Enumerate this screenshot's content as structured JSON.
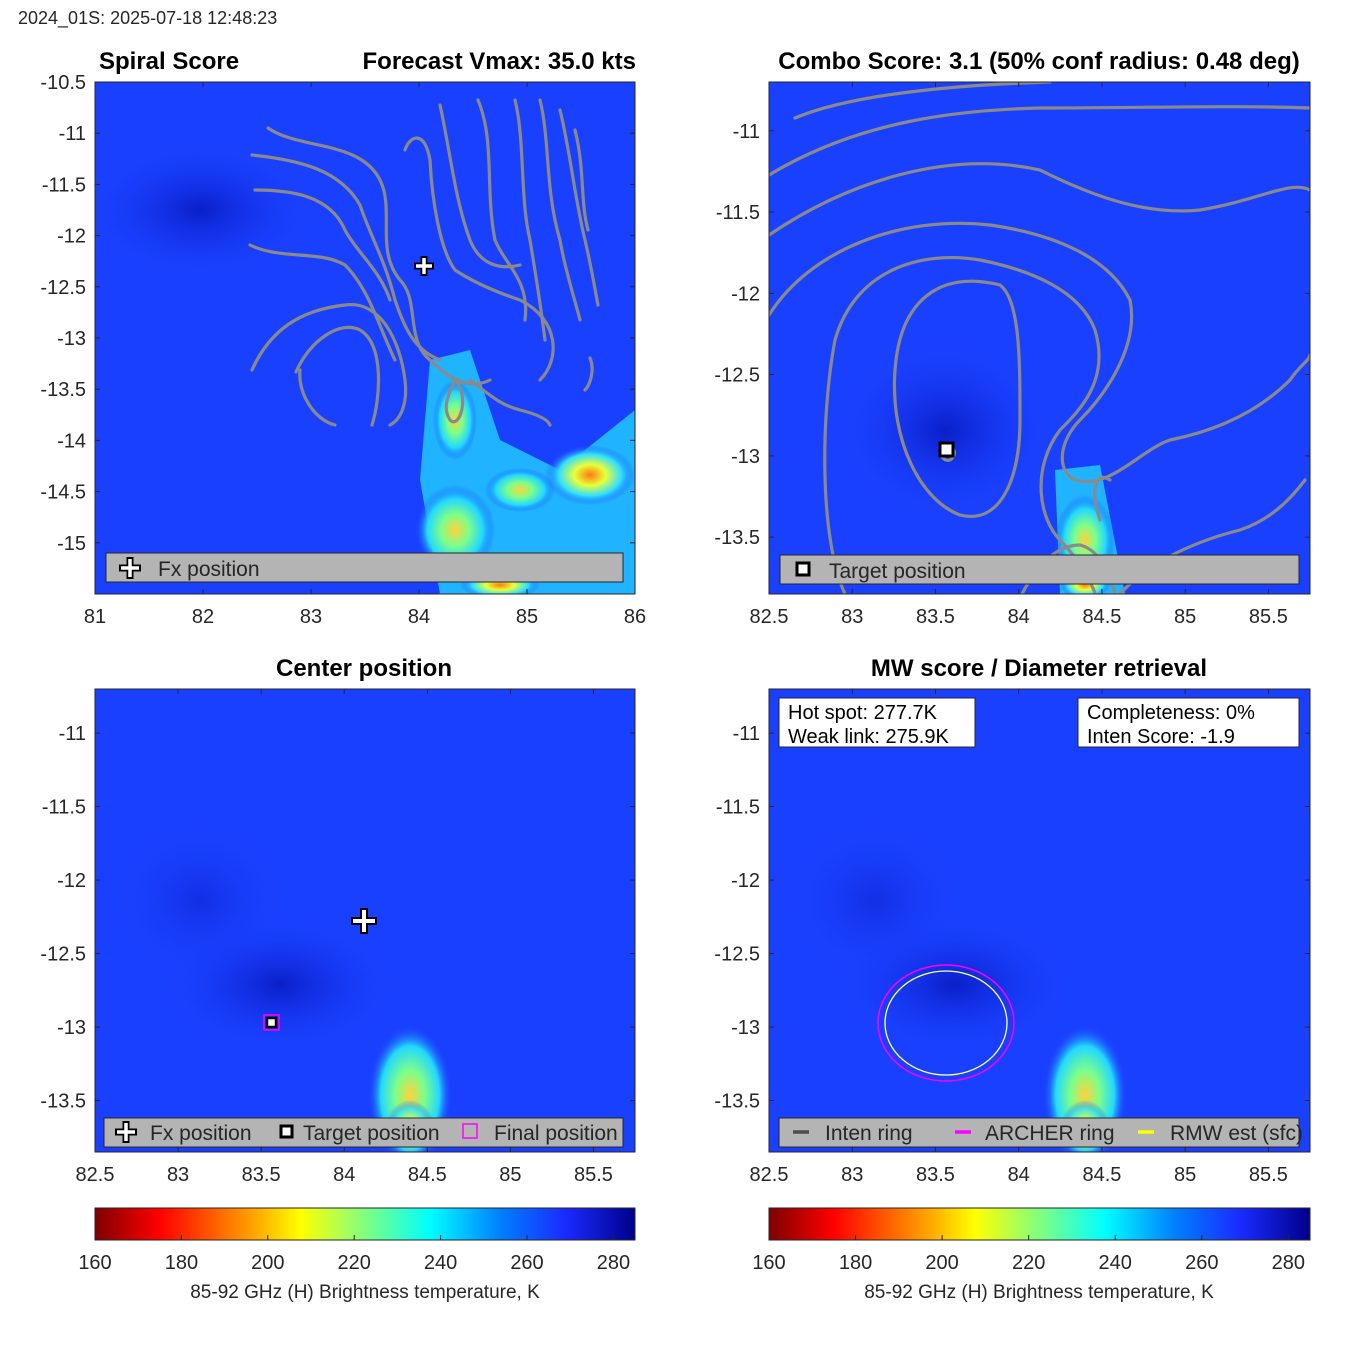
{
  "header": {
    "stamp": "2024_01S: 2025-07-18 12:48:23"
  },
  "colors": {
    "background_field": "#1a40ff",
    "contour": "#8a8a8a",
    "legend_box": "#b4b4b4",
    "archer_ring": "#ff00ff",
    "rmw_ring": "#ffff66",
    "inten_ring": "#4d4d4d"
  },
  "chart_data": [
    {
      "type": "heatmap",
      "panel": "spiral-score",
      "title_left": "Spiral Score",
      "title_right": "Forecast Vmax: 35.0 kts",
      "xlim": [
        81,
        86
      ],
      "ylim": [
        -15.5,
        -10.5
      ],
      "xticks": [
        81,
        82,
        83,
        84,
        85,
        86
      ],
      "xtick_labels": [
        "81",
        "82",
        "83",
        "84",
        "85",
        "86"
      ],
      "yticks": [
        -10.5,
        -11,
        -11.5,
        -12,
        -12.5,
        -13,
        -13.5,
        -14,
        -14.5,
        -15
      ],
      "ytick_labels": [
        "-10.5",
        "-11",
        "-11.5",
        "-12",
        "-12.5",
        "-13",
        "-13.5",
        "-14",
        "-14.5",
        "-15"
      ],
      "markers": [
        {
          "kind": "fx-plus",
          "x": 84.12,
          "y": -12.25
        }
      ],
      "legend": [
        {
          "symbol": "plus",
          "label": "Fx position"
        }
      ],
      "legend_position": "bottom"
    },
    {
      "type": "heatmap",
      "panel": "combo-score",
      "title": "Combo Score: 3.1  (50% conf radius: 0.48 deg)",
      "xlim": [
        82.5,
        85.75
      ],
      "ylim": [
        -13.85,
        -10.7
      ],
      "xticks": [
        82.5,
        83,
        83.5,
        84,
        84.5,
        85,
        85.5
      ],
      "xtick_labels": [
        "82.5",
        "83",
        "83.5",
        "84",
        "84.5",
        "85",
        "85.5"
      ],
      "yticks": [
        -11,
        -11.5,
        -12,
        -12.5,
        -13,
        -13.5
      ],
      "ytick_labels": [
        "-11",
        "-11.5",
        "-12",
        "-12.5",
        "-13",
        "-13.5"
      ],
      "markers": [
        {
          "kind": "target-square",
          "x": 83.55,
          "y": -12.95
        }
      ],
      "legend": [
        {
          "symbol": "square",
          "label": "Target position"
        }
      ],
      "legend_position": "bottom"
    },
    {
      "type": "heatmap",
      "panel": "center-position",
      "title": "Center position",
      "xlim": [
        82.5,
        85.75
      ],
      "ylim": [
        -13.85,
        -10.7
      ],
      "xticks": [
        82.5,
        83,
        83.5,
        84,
        84.5,
        85,
        85.5
      ],
      "xtick_labels": [
        "82.5",
        "83",
        "83.5",
        "84",
        "84.5",
        "85",
        "85.5"
      ],
      "yticks": [
        -11,
        -11.5,
        -12,
        -12.5,
        -13,
        -13.5
      ],
      "ytick_labels": [
        "-11",
        "-11.5",
        "-12",
        "-12.5",
        "-13",
        "-13.5"
      ],
      "markers": [
        {
          "kind": "fx-plus",
          "x": 84.12,
          "y": -12.25
        },
        {
          "kind": "target-square",
          "x": 83.55,
          "y": -12.95
        },
        {
          "kind": "final-square",
          "x": 83.55,
          "y": -12.95
        }
      ],
      "legend": [
        {
          "symbol": "plus",
          "label": "Fx position"
        },
        {
          "symbol": "square",
          "label": "Target position"
        },
        {
          "symbol": "magenta-square",
          "label": "Final position"
        }
      ],
      "legend_position": "bottom"
    },
    {
      "type": "heatmap",
      "panel": "mw-score",
      "title": "MW score / Diameter retrieval",
      "xlim": [
        82.5,
        85.75
      ],
      "ylim": [
        -13.85,
        -10.7
      ],
      "xticks": [
        82.5,
        83,
        83.5,
        84,
        84.5,
        85,
        85.5
      ],
      "xtick_labels": [
        "82.5",
        "83",
        "83.5",
        "84",
        "84.5",
        "85",
        "85.5"
      ],
      "yticks": [
        -11,
        -11.5,
        -12,
        -12.5,
        -13,
        -13.5
      ],
      "ytick_labels": [
        "-11",
        "-11.5",
        "-12",
        "-12.5",
        "-13",
        "-13.5"
      ],
      "annotations": {
        "left": [
          "Hot spot: 277.7K",
          "Weak link: 275.9K"
        ],
        "right": [
          "Completeness: 0%",
          "Inten Score: -1.9"
        ]
      },
      "rings": [
        {
          "kind": "archer",
          "x": 83.55,
          "y": -12.95,
          "radius_deg": 0.41
        },
        {
          "kind": "rmw",
          "x": 83.55,
          "y": -12.95,
          "radius_deg": 0.37
        }
      ],
      "legend": [
        {
          "symbol": "line-gray",
          "label": "Inten ring"
        },
        {
          "symbol": "line-magenta",
          "label": "ARCHER ring"
        },
        {
          "symbol": "line-yellow",
          "label": "RMW est (sfc)"
        }
      ],
      "legend_position": "bottom"
    }
  ],
  "colorbars": [
    {
      "ticks": [
        160,
        180,
        200,
        220,
        240,
        260,
        280
      ],
      "tick_labels": [
        "160",
        "180",
        "200",
        "220",
        "240",
        "260",
        "280"
      ],
      "range": [
        160,
        285
      ],
      "label": "85-92 GHz (H) Brightness temperature, K"
    },
    {
      "ticks": [
        160,
        180,
        200,
        220,
        240,
        260,
        280
      ],
      "tick_labels": [
        "160",
        "180",
        "200",
        "220",
        "240",
        "260",
        "280"
      ],
      "range": [
        160,
        285
      ],
      "label": "85-92 GHz (H) Brightness temperature, K"
    }
  ]
}
